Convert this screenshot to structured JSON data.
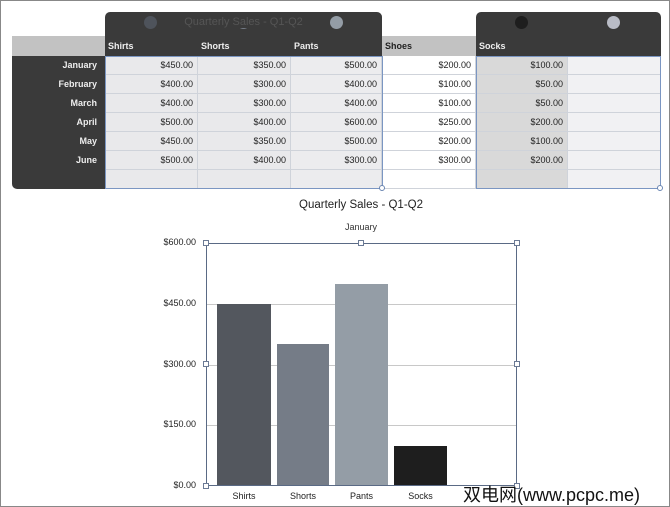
{
  "table": {
    "title": "Quarterly Sales - Q1-Q2",
    "columns": [
      "Shirts",
      "Shorts",
      "Pants",
      "Shoes",
      "Socks"
    ],
    "rows": [
      {
        "label": "January",
        "values": [
          "$450.00",
          "$350.00",
          "$500.00",
          "$200.00",
          "$100.00"
        ]
      },
      {
        "label": "February",
        "values": [
          "$400.00",
          "$300.00",
          "$400.00",
          "$100.00",
          "$50.00"
        ]
      },
      {
        "label": "March",
        "values": [
          "$400.00",
          "$300.00",
          "$400.00",
          "$100.00",
          "$50.00"
        ]
      },
      {
        "label": "April",
        "values": [
          "$500.00",
          "$400.00",
          "$600.00",
          "$250.00",
          "$200.00"
        ]
      },
      {
        "label": "May",
        "values": [
          "$450.00",
          "$350.00",
          "$500.00",
          "$200.00",
          "$100.00"
        ]
      },
      {
        "label": "June",
        "values": [
          "$500.00",
          "$400.00",
          "$300.00",
          "$300.00",
          "$200.00"
        ]
      }
    ],
    "series_colors": [
      "#4e535b",
      "#757c87",
      "#949da6",
      "#1e1e1e",
      "#b9bcc6"
    ]
  },
  "chart_data": {
    "type": "bar",
    "title": "Quarterly Sales - Q1-Q2",
    "subtitle": "January",
    "categories": [
      "Shirts",
      "Shorts",
      "Pants",
      "Socks"
    ],
    "values": [
      450,
      350,
      500,
      100
    ],
    "colors": [
      "#53575e",
      "#757c87",
      "#949da6",
      "#1e1e1e"
    ],
    "ylim": [
      0,
      600
    ],
    "yticks": [
      "$0.00",
      "$150.00",
      "$300.00",
      "$450.00",
      "$600.00"
    ],
    "grid": true
  },
  "watermark": "双电网(www.pcpc.me)"
}
